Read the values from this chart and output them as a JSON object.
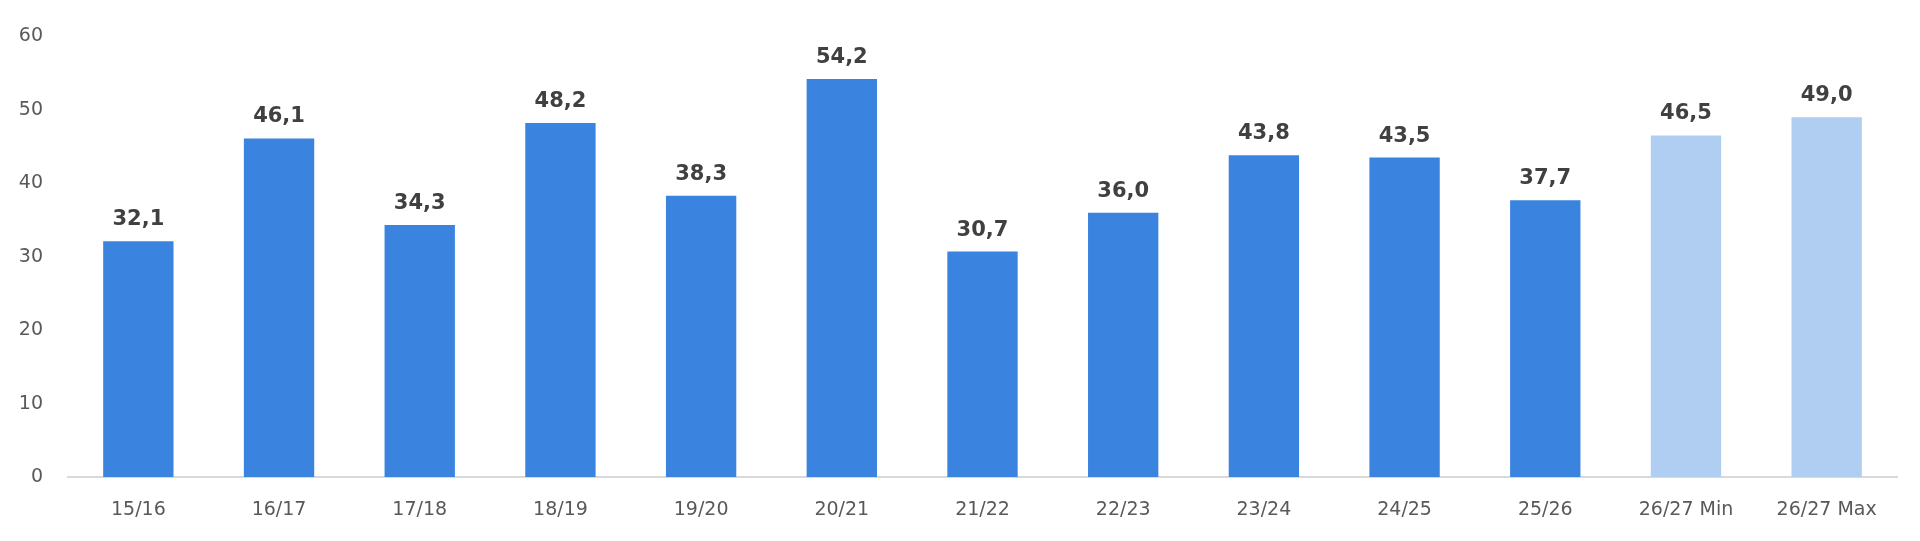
{
  "chart_data": {
    "type": "bar",
    "categories": [
      "15/16",
      "16/17",
      "17/18",
      "18/19",
      "19/20",
      "20/21",
      "21/22",
      "22/23",
      "23/24",
      "24/25",
      "25/26",
      "26/27 Min",
      "26/27 Max"
    ],
    "values": [
      32.1,
      46.1,
      34.3,
      48.2,
      38.3,
      54.2,
      30.7,
      36.0,
      43.8,
      43.5,
      37.7,
      46.5,
      49.0
    ],
    "colors": [
      "#3a84e0",
      "#3a84e0",
      "#3a84e0",
      "#3a84e0",
      "#3a84e0",
      "#3a84e0",
      "#3a84e0",
      "#3a84e0",
      "#3a84e0",
      "#3a84e0",
      "#3a84e0",
      "#b0cdf2",
      "#b0cdf2"
    ],
    "value_labels": [
      "32,1",
      "46,1",
      "34,3",
      "48,2",
      "38,3",
      "54,2",
      "30,7",
      "36,0",
      "43,8",
      "43,5",
      "37,7",
      "46,5",
      "49,0"
    ],
    "ylim": [
      0,
      60
    ],
    "yticks": [
      0,
      10,
      20,
      30,
      40,
      50,
      60
    ]
  }
}
